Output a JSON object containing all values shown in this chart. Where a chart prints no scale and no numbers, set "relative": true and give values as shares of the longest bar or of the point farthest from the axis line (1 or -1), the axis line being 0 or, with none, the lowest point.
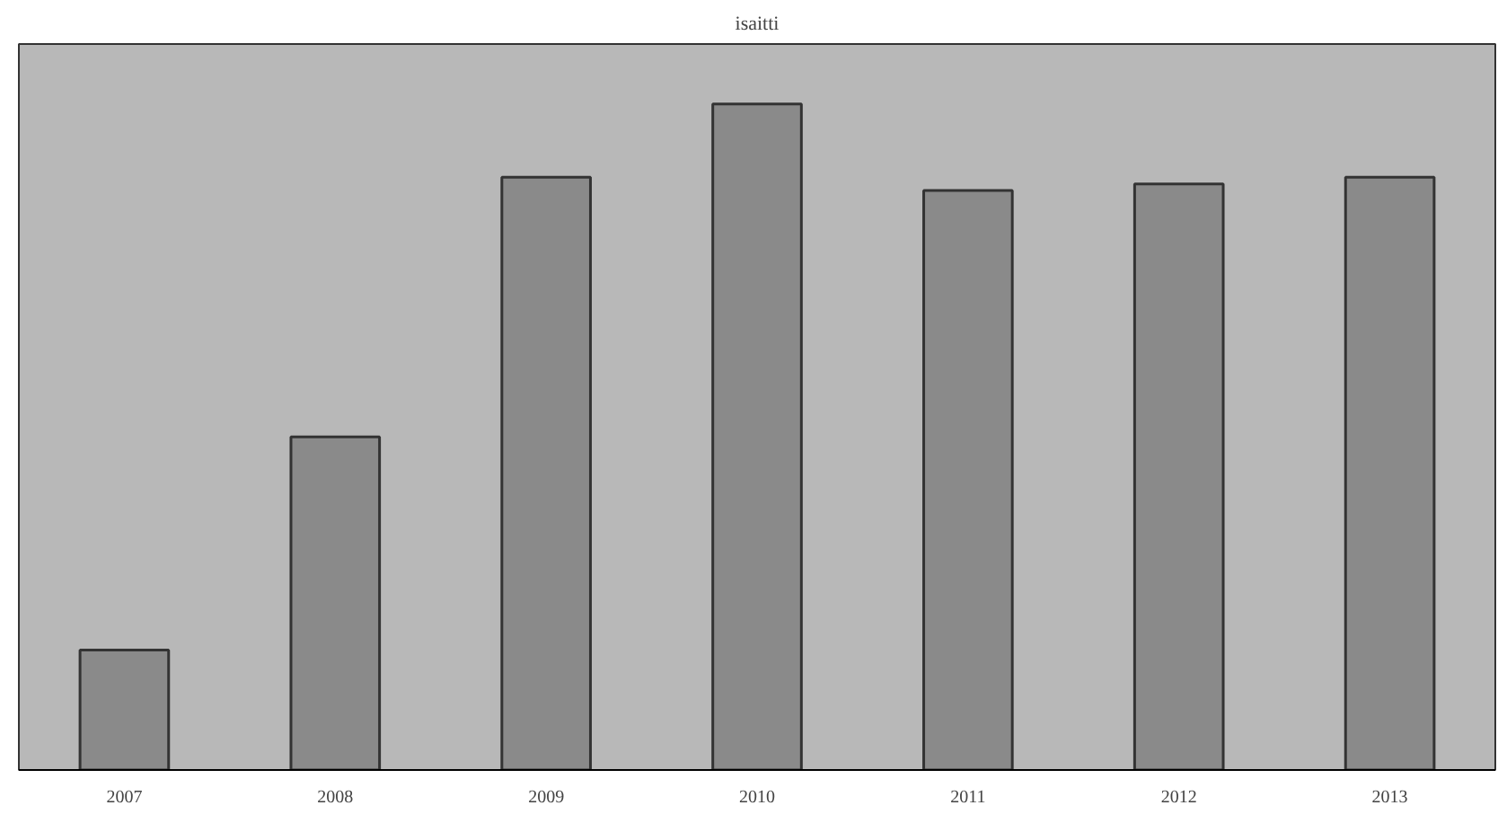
{
  "chart_data": {
    "type": "bar",
    "title": "isaitti",
    "relative": true,
    "categories": [
      "2007",
      "2008",
      "2009",
      "2010",
      "2011",
      "2012",
      "2013"
    ],
    "values": [
      0.18,
      0.5,
      0.89,
      1,
      0.87,
      0.88,
      0.89
    ],
    "color": "#8a8a8a",
    "grid": false
  }
}
